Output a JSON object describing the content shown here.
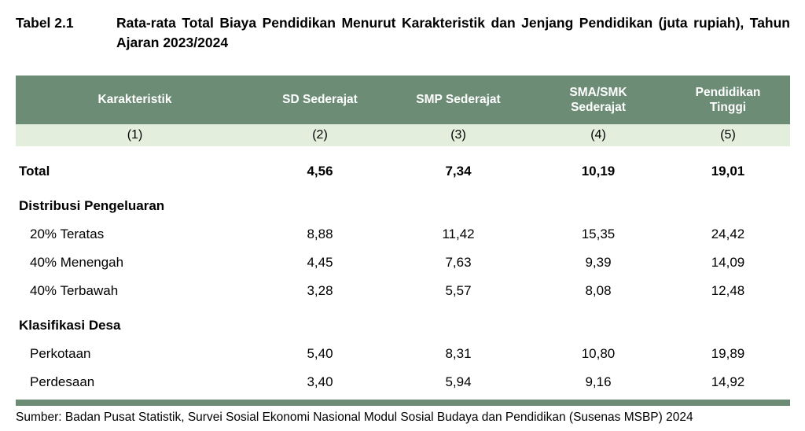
{
  "title": {
    "label": "Tabel 2.1",
    "text": "Rata-rata Total Biaya Pendidikan Menurut Karakteristik dan Jenjang Pendidikan (juta rupiah), Tahun Ajaran 2023/2024"
  },
  "colors": {
    "header_bg": "#6C8C76",
    "subheader_bg": "#E3EFDC",
    "header_text": "#FFFFFF",
    "text": "#000000"
  },
  "table": {
    "columns": [
      {
        "lines": [
          "Karakteristik"
        ],
        "index_label": "(1)"
      },
      {
        "lines": [
          "SD Sederajat"
        ],
        "index_label": "(2)"
      },
      {
        "lines": [
          "SMP Sederajat"
        ],
        "index_label": "(3)"
      },
      {
        "lines": [
          "SMA/SMK",
          "Sederajat"
        ],
        "index_label": "(4)"
      },
      {
        "lines": [
          "Pendidikan",
          "Tinggi"
        ],
        "index_label": "(5)"
      }
    ],
    "rows": [
      {
        "label": "Total",
        "values": [
          "4,56",
          "7,34",
          "10,19",
          "19,01"
        ],
        "bold": true,
        "indent": false,
        "gap_before": true
      },
      {
        "label": "Distribusi Pengeluaran",
        "values": [
          "",
          "",
          "",
          ""
        ],
        "bold": true,
        "indent": false,
        "gap_before": true
      },
      {
        "label": "20% Teratas",
        "values": [
          "8,88",
          "11,42",
          "15,35",
          "24,42"
        ],
        "bold": false,
        "indent": true,
        "gap_before": false
      },
      {
        "label": "40% Menengah",
        "values": [
          "4,45",
          "7,63",
          "9,39",
          "14,09"
        ],
        "bold": false,
        "indent": true,
        "gap_before": false
      },
      {
        "label": "40% Terbawah",
        "values": [
          "3,28",
          "5,57",
          "8,08",
          "12,48"
        ],
        "bold": false,
        "indent": true,
        "gap_before": false
      },
      {
        "label": "Klasifikasi Desa",
        "values": [
          "",
          "",
          "",
          ""
        ],
        "bold": true,
        "indent": false,
        "gap_before": true
      },
      {
        "label": "Perkotaan",
        "values": [
          "5,40",
          "8,31",
          "10,80",
          "19,89"
        ],
        "bold": false,
        "indent": true,
        "gap_before": false
      },
      {
        "label": "Perdesaan",
        "values": [
          "3,40",
          "5,94",
          "9,16",
          "14,92"
        ],
        "bold": false,
        "indent": true,
        "gap_before": false
      }
    ]
  },
  "footer": {
    "source": "Sumber: Badan Pusat Statistik, Survei Sosial Ekonomi Nasional Modul Sosial Budaya dan Pendidikan (Susenas MSBP) 2024"
  }
}
